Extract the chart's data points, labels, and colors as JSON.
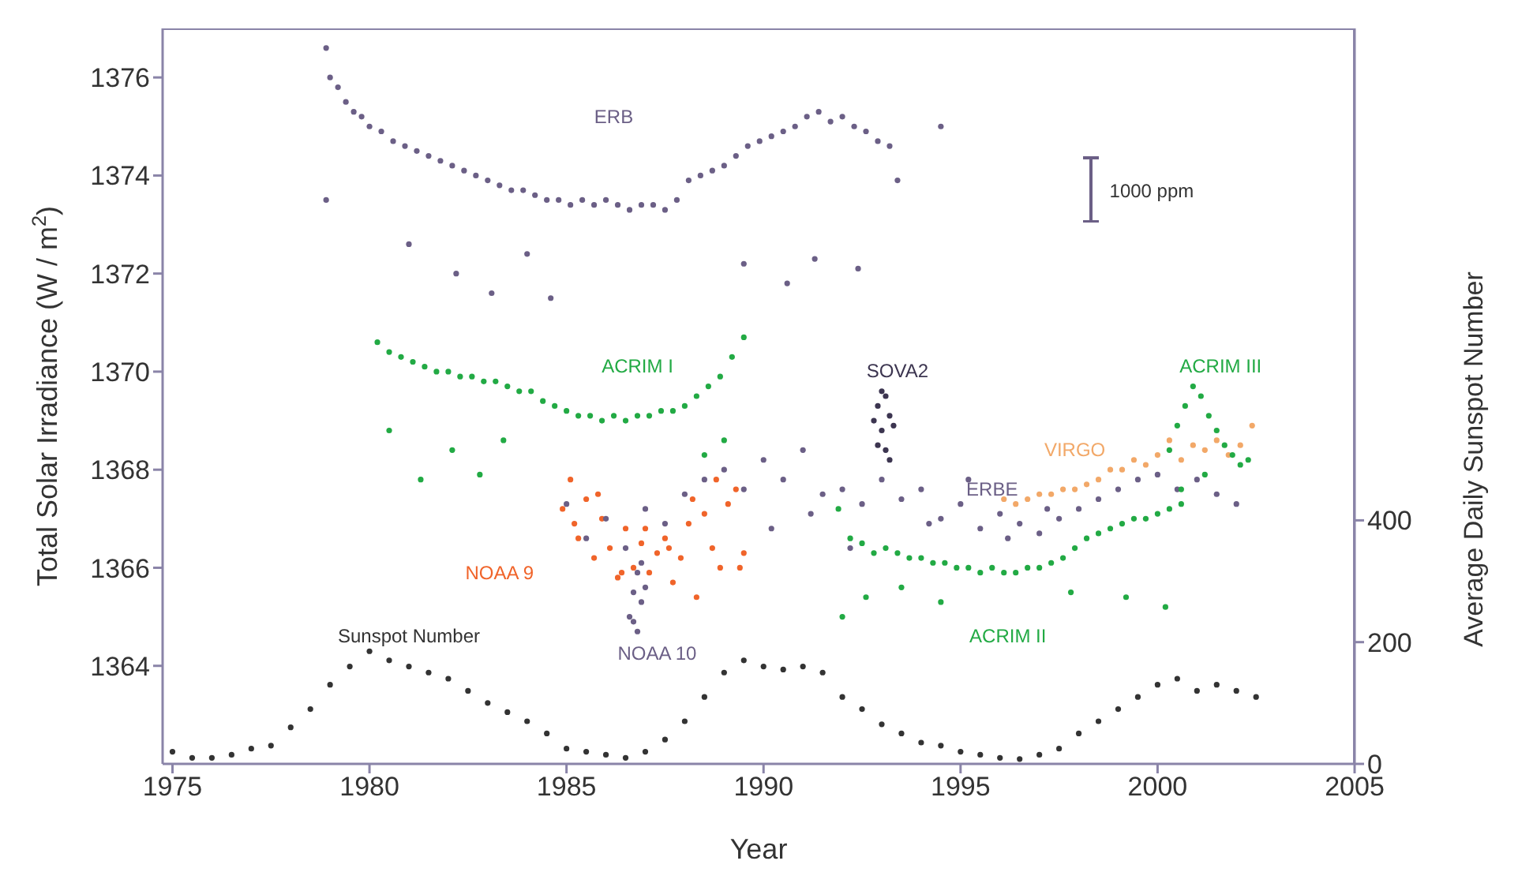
{
  "chart_data": {
    "type": "scatter",
    "xlabel": "Year",
    "ylabel": "Total Solar Irradiance (W / m$^{2}$)",
    "y2label": "Average Daily Sunspot Number",
    "xlim": [
      1974.75,
      2005
    ],
    "xticks": [
      1975,
      1980,
      1985,
      1990,
      1995,
      2000,
      2005
    ],
    "ylim": [
      1362,
      1377
    ],
    "yticks": [
      1364,
      1366,
      1368,
      1370,
      1372,
      1374,
      1376
    ],
    "y2lim": [
      0,
      1208
    ],
    "y2ticks": [
      0,
      200,
      400
    ],
    "grid": false,
    "legend": false,
    "marker": "circle",
    "annotations": [
      "1000 ppm"
    ],
    "series": [
      {
        "name": "ERB",
        "color": "#6b5f86",
        "x": [
          1978.9,
          1979.0,
          1979.2,
          1979.4,
          1979.6,
          1979.8,
          1980.0,
          1980.3,
          1980.6,
          1980.9,
          1981.2,
          1981.5,
          1981.8,
          1982.1,
          1982.4,
          1982.7,
          1983.0,
          1983.3,
          1983.6,
          1983.9,
          1984.2,
          1984.5,
          1984.8,
          1985.1,
          1985.4,
          1985.7,
          1986.0,
          1986.3,
          1986.6,
          1986.9,
          1987.2,
          1987.5,
          1987.8,
          1988.1,
          1988.4,
          1988.7,
          1989.0,
          1989.3,
          1989.6,
          1989.9,
          1990.2,
          1990.5,
          1990.8,
          1991.1,
          1991.4,
          1991.7,
          1992.0,
          1992.3,
          1992.6,
          1992.9,
          1993.2,
          1993.4,
          1994.5,
          1981.0,
          1982.2,
          1983.1,
          1984.0,
          1984.6,
          1989.5,
          1990.6,
          1991.3,
          1992.4,
          1978.9
        ],
        "values": [
          1376.6,
          1376.0,
          1375.8,
          1375.5,
          1375.3,
          1375.2,
          1375.0,
          1374.9,
          1374.7,
          1374.6,
          1374.5,
          1374.4,
          1374.3,
          1374.2,
          1374.1,
          1374.0,
          1373.9,
          1373.8,
          1373.7,
          1373.7,
          1373.6,
          1373.5,
          1373.5,
          1373.4,
          1373.5,
          1373.4,
          1373.5,
          1373.4,
          1373.3,
          1373.4,
          1373.4,
          1373.3,
          1373.5,
          1373.9,
          1374.0,
          1374.1,
          1374.2,
          1374.4,
          1374.6,
          1374.7,
          1374.8,
          1374.9,
          1375.0,
          1375.2,
          1375.3,
          1375.1,
          1375.2,
          1375.0,
          1374.9,
          1374.7,
          1374.6,
          1373.9,
          1375.0,
          1372.6,
          1372.0,
          1371.6,
          1372.4,
          1371.5,
          1372.2,
          1371.8,
          1372.3,
          1372.1,
          1373.5
        ]
      },
      {
        "name": "ACRIM I",
        "color": "#22aa44",
        "x": [
          1980.2,
          1980.5,
          1980.8,
          1981.1,
          1981.4,
          1981.7,
          1982.0,
          1982.3,
          1982.6,
          1982.9,
          1983.2,
          1983.5,
          1983.8,
          1984.1,
          1984.4,
          1984.7,
          1985.0,
          1985.3,
          1985.6,
          1985.9,
          1986.2,
          1986.5,
          1986.8,
          1987.1,
          1987.4,
          1987.7,
          1988.0,
          1988.3,
          1988.6,
          1988.9,
          1989.2,
          1989.5,
          1980.5,
          1981.3,
          1982.1,
          1982.8,
          1983.4,
          1988.5,
          1989.0
        ],
        "values": [
          1370.6,
          1370.4,
          1370.3,
          1370.2,
          1370.1,
          1370.0,
          1370.0,
          1369.9,
          1369.9,
          1369.8,
          1369.8,
          1369.7,
          1369.6,
          1369.6,
          1369.4,
          1369.3,
          1369.2,
          1369.1,
          1369.1,
          1369.0,
          1369.1,
          1369.0,
          1369.1,
          1369.1,
          1369.2,
          1369.2,
          1369.3,
          1369.5,
          1369.7,
          1369.9,
          1370.3,
          1370.7,
          1368.8,
          1367.8,
          1368.4,
          1367.9,
          1368.6,
          1368.3,
          1368.6
        ]
      },
      {
        "name": "NOAA 9",
        "color": "#f0642a",
        "x": [
          1984.9,
          1985.1,
          1985.3,
          1985.5,
          1985.7,
          1985.9,
          1986.1,
          1986.3,
          1986.5,
          1986.7,
          1986.9,
          1987.1,
          1987.3,
          1987.5,
          1987.7,
          1987.9,
          1988.1,
          1988.3,
          1988.5,
          1988.7,
          1988.9,
          1989.1,
          1989.3,
          1989.5,
          1985.2,
          1985.8,
          1986.4,
          1987.0,
          1987.6,
          1988.2,
          1988.8,
          1989.4
        ],
        "values": [
          1367.2,
          1367.8,
          1366.6,
          1367.4,
          1366.2,
          1367.0,
          1366.4,
          1365.8,
          1366.8,
          1366.0,
          1366.5,
          1365.9,
          1366.3,
          1366.6,
          1365.7,
          1366.2,
          1366.9,
          1365.4,
          1367.1,
          1366.4,
          1366.0,
          1367.3,
          1367.6,
          1366.3,
          1366.9,
          1367.5,
          1365.9,
          1366.8,
          1366.4,
          1367.4,
          1367.8,
          1366.0
        ]
      },
      {
        "name": "NOAA 10",
        "color": "#6b5f86",
        "x": [
          1986.6,
          1986.7,
          1986.8,
          1986.9,
          1987.0,
          1986.8,
          1986.7,
          1986.9
        ],
        "values": [
          1365.0,
          1365.5,
          1364.7,
          1365.3,
          1365.6,
          1365.9,
          1364.9,
          1366.1
        ]
      },
      {
        "name": "ERBE",
        "color": "#6b5f86",
        "x": [
          1985.0,
          1985.5,
          1986.0,
          1986.5,
          1987.0,
          1987.5,
          1988.0,
          1988.5,
          1989.0,
          1989.5,
          1990.0,
          1990.5,
          1991.0,
          1991.5,
          1992.0,
          1992.5,
          1993.0,
          1993.5,
          1994.0,
          1994.5,
          1995.0,
          1995.5,
          1996.0,
          1996.5,
          1997.0,
          1997.5,
          1998.0,
          1998.5,
          1999.0,
          1999.5,
          2000.0,
          2000.5,
          2001.0,
          2001.5,
          2002.0,
          1990.2,
          1991.2,
          1992.2,
          1994.2,
          1995.2,
          1996.2,
          1997.2
        ],
        "values": [
          1367.3,
          1366.6,
          1367.0,
          1366.4,
          1367.2,
          1366.9,
          1367.5,
          1367.8,
          1368.0,
          1367.6,
          1368.2,
          1367.8,
          1368.4,
          1367.5,
          1367.6,
          1367.3,
          1367.8,
          1367.4,
          1367.6,
          1367.0,
          1367.3,
          1366.8,
          1367.1,
          1366.9,
          1366.7,
          1367.0,
          1367.2,
          1367.4,
          1367.6,
          1367.8,
          1367.9,
          1367.6,
          1367.8,
          1367.5,
          1367.3,
          1366.8,
          1367.1,
          1366.4,
          1366.9,
          1367.8,
          1366.6,
          1367.2
        ]
      },
      {
        "name": "SOVA2",
        "color": "#3c3550",
        "x": [
          1992.8,
          1992.9,
          1993.0,
          1993.1,
          1993.2,
          1993.3,
          1992.9,
          1993.1,
          1993.0,
          1993.2
        ],
        "values": [
          1369.0,
          1369.3,
          1368.8,
          1369.5,
          1369.1,
          1368.9,
          1368.5,
          1368.4,
          1369.6,
          1368.2
        ]
      },
      {
        "name": "ACRIM II",
        "color": "#22aa44",
        "x": [
          1991.9,
          1992.2,
          1992.5,
          1992.8,
          1993.1,
          1993.4,
          1993.7,
          1994.0,
          1994.3,
          1994.6,
          1994.9,
          1995.2,
          1995.5,
          1995.8,
          1996.1,
          1996.4,
          1996.7,
          1997.0,
          1997.3,
          1997.6,
          1997.9,
          1998.2,
          1998.5,
          1998.8,
          1999.1,
          1999.4,
          1999.7,
          2000.0,
          2000.3,
          2000.6,
          1992.0,
          1992.6,
          1993.5,
          1994.5,
          1997.8,
          1999.2,
          2000.2
        ],
        "values": [
          1367.2,
          1366.6,
          1366.5,
          1366.3,
          1366.4,
          1366.3,
          1366.2,
          1366.2,
          1366.1,
          1366.1,
          1366.0,
          1366.0,
          1365.9,
          1366.0,
          1365.9,
          1365.9,
          1366.0,
          1366.0,
          1366.1,
          1366.2,
          1366.4,
          1366.6,
          1366.7,
          1366.8,
          1366.9,
          1367.0,
          1367.0,
          1367.1,
          1367.2,
          1367.3,
          1365.0,
          1365.4,
          1365.6,
          1365.3,
          1365.5,
          1365.4,
          1365.2
        ]
      },
      {
        "name": "VIRGO",
        "color": "#f2a868",
        "x": [
          1996.1,
          1996.4,
          1996.7,
          1997.0,
          1997.3,
          1997.6,
          1997.9,
          1998.2,
          1998.5,
          1998.8,
          1999.1,
          1999.4,
          1999.7,
          2000.0,
          2000.3,
          2000.6,
          2000.9,
          2001.2,
          2001.5,
          2001.8,
          2002.1,
          2002.4
        ],
        "values": [
          1367.4,
          1367.3,
          1367.4,
          1367.5,
          1367.5,
          1367.6,
          1367.6,
          1367.7,
          1367.8,
          1368.0,
          1368.0,
          1368.2,
          1368.1,
          1368.3,
          1368.6,
          1368.2,
          1368.5,
          1368.4,
          1368.6,
          1368.3,
          1368.5,
          1368.9
        ]
      },
      {
        "name": "ACRIM III",
        "color": "#22aa44",
        "x": [
          2000.3,
          2000.5,
          2000.7,
          2000.9,
          2001.1,
          2001.3,
          2001.5,
          2001.7,
          2001.9,
          2002.1,
          2002.3,
          2000.6,
          2001.2
        ],
        "values": [
          1368.4,
          1368.9,
          1369.3,
          1369.7,
          1369.5,
          1369.1,
          1368.8,
          1368.5,
          1368.3,
          1368.1,
          1368.2,
          1367.6,
          1367.9
        ]
      },
      {
        "name": "Sunspot Number",
        "color": "#333333",
        "axis": "y2",
        "x": [
          1975.0,
          1975.5,
          1976.0,
          1976.5,
          1977.0,
          1977.5,
          1978.0,
          1978.5,
          1979.0,
          1979.5,
          1980.0,
          1980.5,
          1981.0,
          1981.5,
          1982.0,
          1982.5,
          1983.0,
          1983.5,
          1984.0,
          1984.5,
          1985.0,
          1985.5,
          1986.0,
          1986.5,
          1987.0,
          1987.5,
          1988.0,
          1988.5,
          1989.0,
          1989.5,
          1990.0,
          1990.5,
          1991.0,
          1991.5,
          1992.0,
          1992.5,
          1993.0,
          1993.5,
          1994.0,
          1994.5,
          1995.0,
          1995.5,
          1996.0,
          1996.5,
          1997.0,
          1997.5,
          1998.0,
          1998.5,
          1999.0,
          1999.5,
          2000.0,
          2000.5,
          2001.0,
          2001.5,
          2002.0,
          2002.5
        ],
        "values": [
          20,
          10,
          10,
          15,
          25,
          30,
          60,
          90,
          130,
          160,
          185,
          170,
          160,
          150,
          140,
          120,
          100,
          85,
          70,
          50,
          25,
          20,
          15,
          10,
          20,
          40,
          70,
          110,
          150,
          170,
          160,
          155,
          160,
          150,
          110,
          90,
          65,
          50,
          35,
          30,
          20,
          15,
          10,
          8,
          15,
          25,
          50,
          70,
          90,
          110,
          130,
          140,
          120,
          130,
          120,
          110
        ]
      }
    ]
  }
}
